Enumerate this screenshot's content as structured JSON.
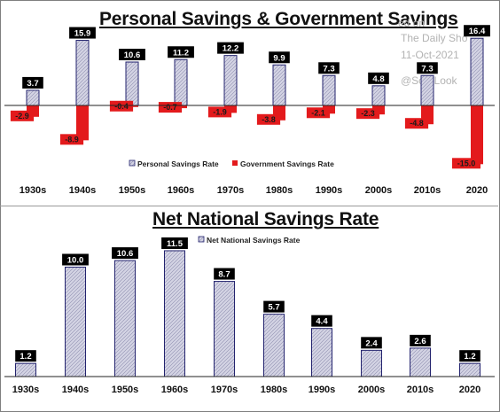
{
  "chart_data": [
    {
      "type": "bar",
      "title": "Personal Savings & Government Savings",
      "categories": [
        "1930s",
        "1940s",
        "1950s",
        "1960s",
        "1970s",
        "1980s",
        "1990s",
        "2000s",
        "2010s",
        "2020"
      ],
      "series": [
        {
          "name": "Personal Savings Rate",
          "values": [
            3.7,
            15.9,
            10.6,
            11.2,
            12.2,
            9.9,
            7.3,
            4.8,
            7.3,
            16.4
          ]
        },
        {
          "name": "Government Savings Rate",
          "values": [
            -2.9,
            -8.9,
            -0.4,
            -0.7,
            -1.9,
            -3.8,
            -2.1,
            -2.3,
            -4.8,
            -15.0
          ]
        }
      ],
      "ylim": [
        -15,
        16.4
      ],
      "grid": false,
      "legend": "bottom"
    },
    {
      "type": "bar",
      "title": "Net National Savings Rate",
      "categories": [
        "1930s",
        "1940s",
        "1950s",
        "1960s",
        "1970s",
        "1980s",
        "1990s",
        "2000s",
        "2010s",
        "2020"
      ],
      "series": [
        {
          "name": "Net National Savings Rate",
          "values": [
            1.2,
            10.0,
            10.6,
            11.5,
            8.7,
            5.7,
            4.4,
            2.4,
            2.6,
            1.2
          ]
        }
      ],
      "ylim": [
        0,
        11.5
      ],
      "grid": false,
      "legend": "top"
    }
  ],
  "colors": {
    "personal_fill": "#d4d4e4",
    "personal_border": "#23236e",
    "government": "#e31a1c",
    "label_box": "#000000",
    "label_text": "#ffffff"
  },
  "watermark": {
    "line1": "ed on",
    "line2": "The Daily Sho",
    "line3": "11-Oct-2021",
    "line4": "@SoarLook"
  }
}
